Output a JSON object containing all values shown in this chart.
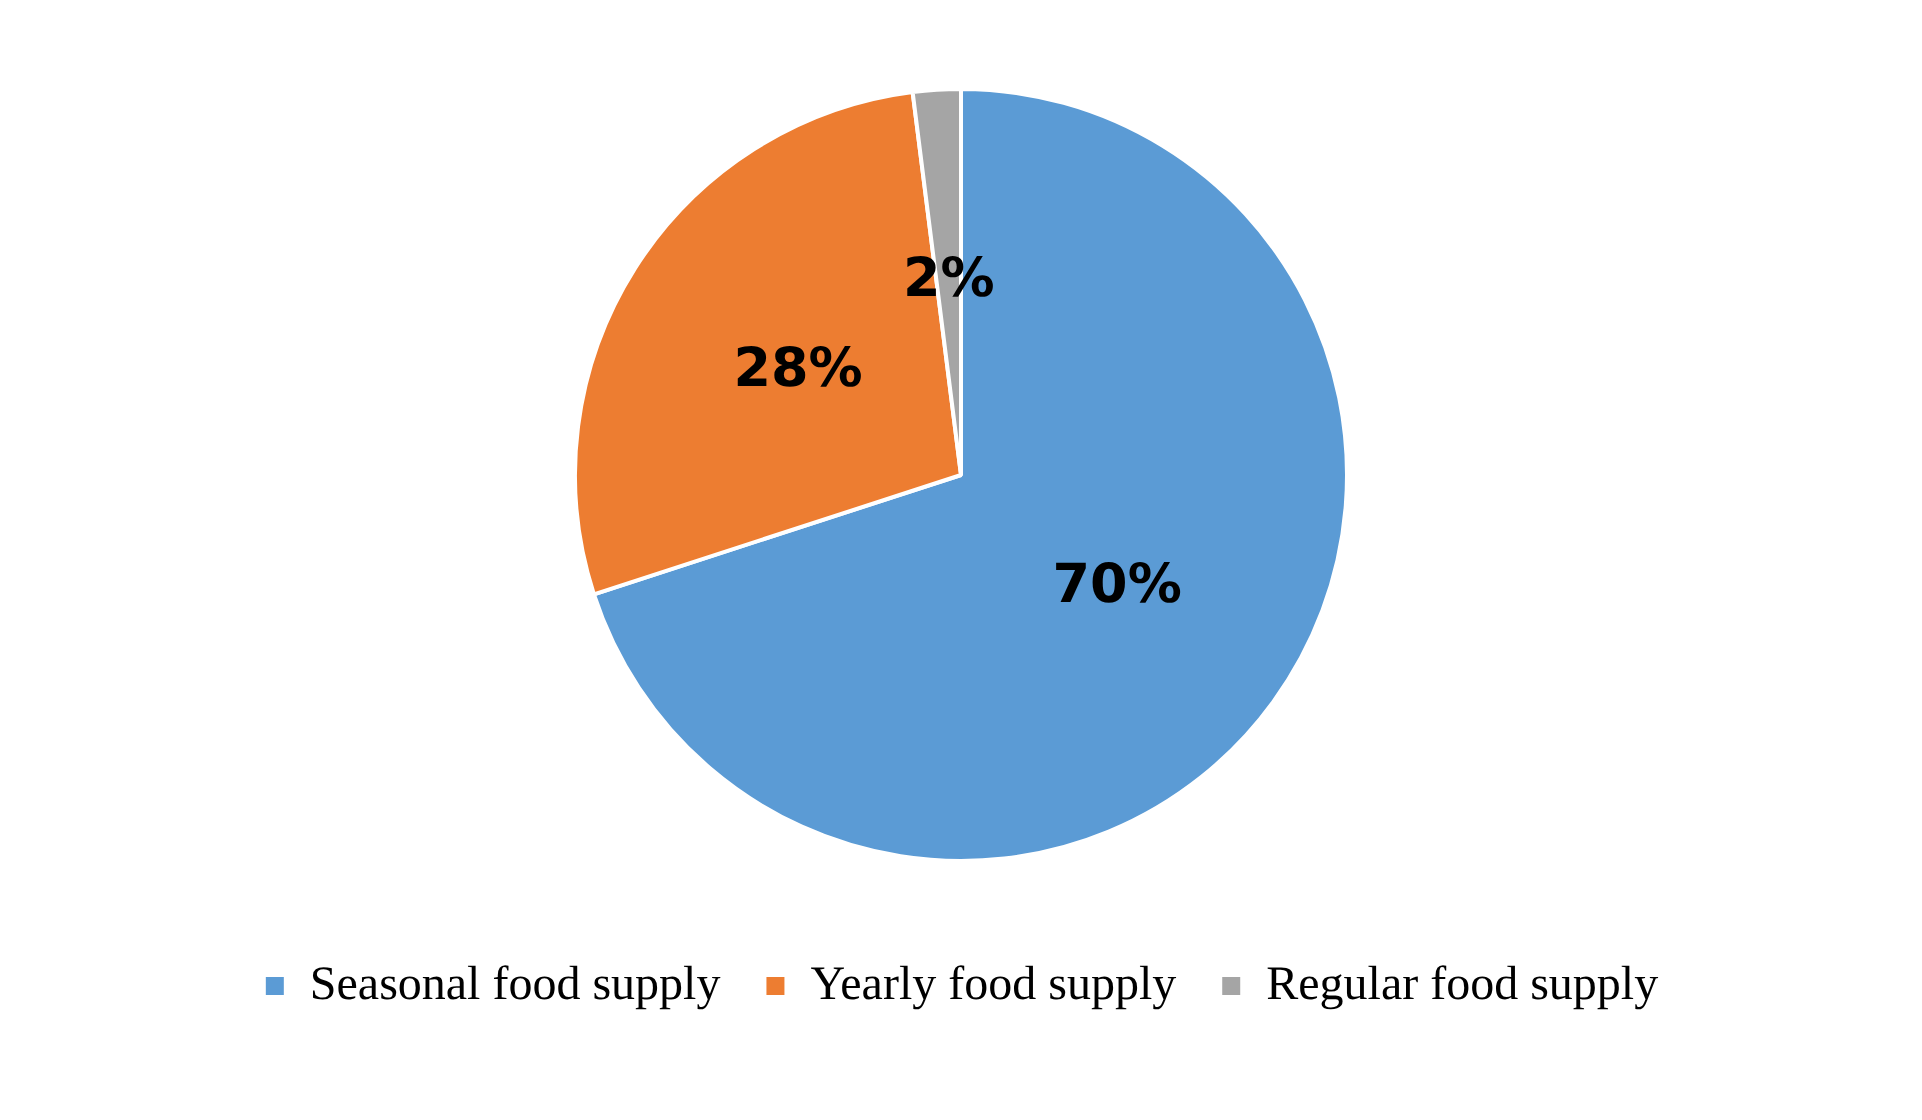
{
  "chart_data": {
    "type": "pie",
    "categories": [
      "Seasonal food supply",
      "Yearly food supply",
      "Regular food supply"
    ],
    "values": [
      70,
      28,
      2
    ],
    "colors": [
      "#5b9bd5",
      "#ed7d31",
      "#a5a5a5"
    ],
    "value_labels": [
      "70%",
      "28%",
      "2%"
    ],
    "legend": "bottom"
  }
}
